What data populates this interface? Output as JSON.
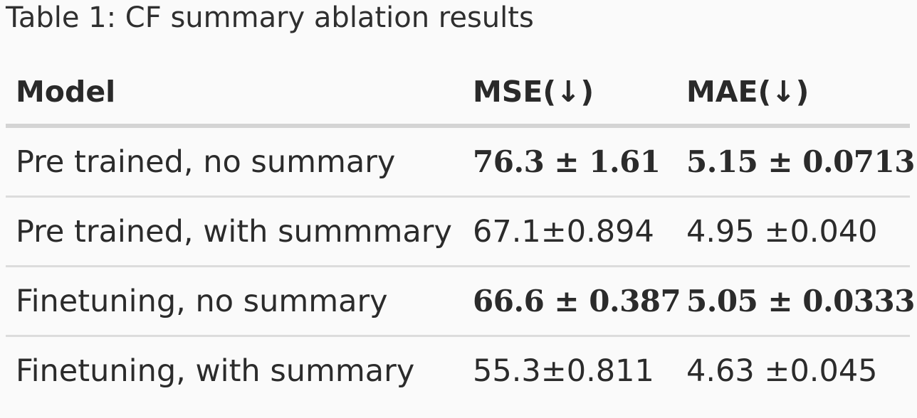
{
  "caption": "Table 1: CF summary ablation results",
  "table": {
    "headers": {
      "model": "Model",
      "mse": "MSE(↓)",
      "mae": "MAE(↓)"
    },
    "rows": [
      {
        "model": "Pre trained, no summary",
        "mse": "76.3 ± 1.61",
        "mae": "5.15 ± 0.0713"
      },
      {
        "model": "Pre trained, with summmary",
        "mse": "67.1±0.894",
        "mae": "4.95 ±0.040"
      },
      {
        "model": "Finetuning, no summary",
        "mse": "66.6 ± 0.387",
        "mae": "5.05 ± 0.0333"
      },
      {
        "model": "Finetuning, with summary",
        "mse": "55.3±0.811",
        "mae": "4.63 ±0.045"
      }
    ]
  }
}
